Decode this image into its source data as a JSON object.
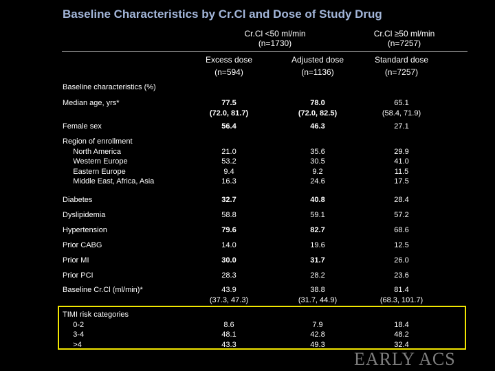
{
  "title": "Baseline Characteristics by Cr.Cl and Dose of Study Drug",
  "groups": [
    {
      "line1": "Cr.Cl <50 ml/min",
      "line2": "(n=1730)"
    },
    {
      "line1": "Cr.Cl ≥50 ml/min",
      "line2": "(n=7257)"
    }
  ],
  "dose_columns": [
    {
      "label": "Excess dose",
      "n": "(n=594)"
    },
    {
      "label": "Adjusted dose",
      "n": "(n=1136)"
    },
    {
      "label": "Standard dose",
      "n": "(n=7257)"
    }
  ],
  "section_label": "Baseline characteristics (%)",
  "rows": [
    {
      "label": "Median age, yrs*",
      "values": [
        "77.5\n(72.0, 81.7)",
        "78.0\n(72.0, 82.5)",
        "65.1\n(58.4, 71.9)"
      ]
    },
    {
      "label": "Female sex",
      "values": [
        "56.4",
        "46.3",
        "27.1"
      ]
    },
    {
      "label": "Region of enrollment\n     North America\n     Western Europe\n     Eastern Europe\n     Middle East, Africa, Asia",
      "values": [
        "\n21.0\n53.2\n9.4\n16.3",
        "\n35.6\n30.5\n9.2\n24.6",
        "\n29.9\n41.0\n11.5\n17.5"
      ]
    },
    {
      "label": "Diabetes",
      "values": [
        "32.7",
        "40.8",
        "28.4"
      ]
    },
    {
      "label": "Dyslipidemia",
      "values": [
        "58.8",
        "59.1",
        "57.2"
      ]
    },
    {
      "label": "Hypertension",
      "values": [
        "79.6",
        "82.7",
        "68.6"
      ]
    },
    {
      "label": "Prior CABG",
      "values": [
        "14.0",
        "19.6",
        "12.5"
      ]
    },
    {
      "label": "Prior MI",
      "values": [
        "30.0",
        "31.7",
        "26.0"
      ]
    },
    {
      "label": "Prior PCI",
      "values": [
        "28.3",
        "28.2",
        "23.6"
      ]
    },
    {
      "label": "Baseline Cr.Cl (ml/min)*",
      "values": [
        "43.9\n(37.3, 47.3)",
        "38.8\n(31.7, 44.9)",
        "81.4\n(68.3, 101.7)"
      ]
    },
    {
      "label": "TIMI risk categories\n     0-2\n     3-4\n     >4",
      "values": [
        "\n8.6\n48.1\n43.3",
        "\n7.9\n42.8\n49.3",
        "\n18.4\n48.2\n32.4"
      ]
    }
  ],
  "logo_text": "EARLY ACS"
}
